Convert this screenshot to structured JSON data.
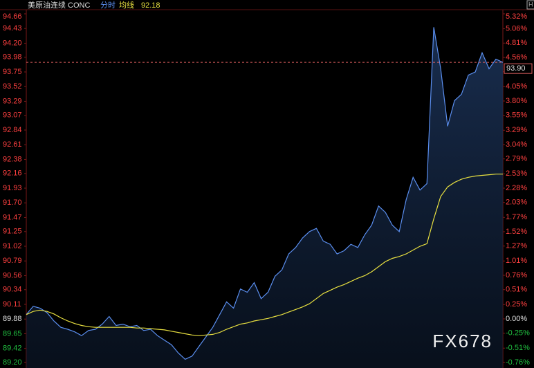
{
  "chart_data": {
    "type": "line",
    "title": "美原油连续 CONC",
    "avg_value": 92.18,
    "watermark": "FX678",
    "reference_line": {
      "value": 93.9,
      "label": "93.90"
    },
    "ylim": [
      89.2,
      94.66
    ],
    "yticks": [
      94.66,
      94.43,
      {
        "value": 94.2,
        "label": "94.20"
      },
      93.98,
      93.75,
      93.52,
      93.29,
      93.07,
      92.84,
      92.61,
      92.38,
      92.16,
      91.93,
      {
        "value": 91.7,
        "label": "91.70"
      },
      91.47,
      91.25,
      91.02,
      90.79,
      90.56,
      90.34,
      90.11,
      89.88,
      89.65,
      89.42,
      {
        "value": 89.2,
        "label": "89.20"
      }
    ],
    "y2lim": [
      -0.76,
      5.32
    ],
    "y2ticks": [
      {
        "value": 5.32,
        "label": "5.32%"
      },
      {
        "value": 5.06,
        "label": "5.06%"
      },
      {
        "value": 4.81,
        "label": "4.81%"
      },
      {
        "value": 4.56,
        "label": "4.56%"
      },
      {
        "value": 4.31,
        "label": "4.31%"
      },
      {
        "value": 4.05,
        "label": "4.05%"
      },
      {
        "value": 3.8,
        "label": "3.80%"
      },
      {
        "value": 3.55,
        "label": "3.55%"
      },
      {
        "value": 3.29,
        "label": "3.29%"
      },
      {
        "value": 3.04,
        "label": "3.04%"
      },
      {
        "value": 2.79,
        "label": "2.79%"
      },
      {
        "value": 2.53,
        "label": "2.53%"
      },
      {
        "value": 2.28,
        "label": "2.28%"
      },
      {
        "value": 2.03,
        "label": "2.03%"
      },
      {
        "value": 1.77,
        "label": "1.77%"
      },
      {
        "value": 1.52,
        "label": "1.52%"
      },
      {
        "value": 1.27,
        "label": "1.27%"
      },
      {
        "value": 1.01,
        "label": "1.01%"
      },
      {
        "value": 0.76,
        "label": "0.76%"
      },
      {
        "value": 0.51,
        "label": "0.51%"
      },
      {
        "value": 0.25,
        "label": "0.25%"
      },
      {
        "value": 0,
        "label": "0.00%"
      },
      {
        "value": -0.25,
        "label": "-0.25%"
      },
      {
        "value": -0.51,
        "label": "-0.51%"
      },
      {
        "value": -0.76,
        "label": "-0.76%"
      }
    ],
    "series": [
      {
        "name": "分时",
        "color": "#5b8ff0",
        "values": [
          89.95,
          90.08,
          90.05,
          89.98,
          89.85,
          89.75,
          89.72,
          89.68,
          89.62,
          89.7,
          89.72,
          89.8,
          89.92,
          89.78,
          89.8,
          89.76,
          89.78,
          89.7,
          89.72,
          89.62,
          89.55,
          89.48,
          89.35,
          89.25,
          89.3,
          89.45,
          89.6,
          89.75,
          89.95,
          90.15,
          90.05,
          90.35,
          90.3,
          90.45,
          90.2,
          90.3,
          90.55,
          90.65,
          90.9,
          91.0,
          91.15,
          91.25,
          91.3,
          91.1,
          91.05,
          90.9,
          90.95,
          91.05,
          91.0,
          91.2,
          91.35,
          91.65,
          91.55,
          91.35,
          91.25,
          91.75,
          92.1,
          91.9,
          92.0,
          94.45,
          93.8,
          92.9,
          93.3,
          93.4,
          93.7,
          93.75,
          94.05,
          93.8,
          93.95,
          93.9
        ]
      },
      {
        "name": "均线",
        "color": "#e8e040",
        "values": [
          89.95,
          90.0,
          90.02,
          90.0,
          89.96,
          89.9,
          89.85,
          89.81,
          89.78,
          89.76,
          89.75,
          89.75,
          89.75,
          89.75,
          89.75,
          89.75,
          89.74,
          89.74,
          89.73,
          89.72,
          89.71,
          89.69,
          89.67,
          89.65,
          89.63,
          89.62,
          89.63,
          89.64,
          89.67,
          89.72,
          89.76,
          89.8,
          89.82,
          89.85,
          89.87,
          89.89,
          89.92,
          89.95,
          89.99,
          90.03,
          90.07,
          90.12,
          90.2,
          90.28,
          90.33,
          90.38,
          90.42,
          90.47,
          90.52,
          90.56,
          90.62,
          90.7,
          90.78,
          90.83,
          90.86,
          90.9,
          90.96,
          91.02,
          91.06,
          91.45,
          91.8,
          91.95,
          92.02,
          92.07,
          92.1,
          92.12,
          92.13,
          92.14,
          92.15,
          92.15
        ]
      }
    ]
  }
}
